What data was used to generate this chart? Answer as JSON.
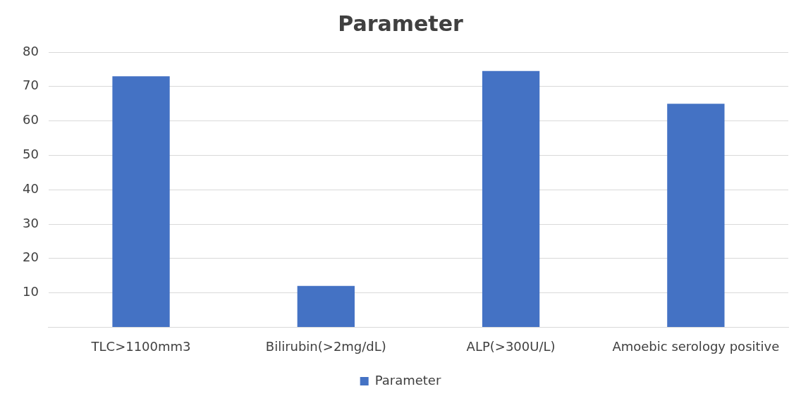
{
  "chart_data": {
    "type": "bar",
    "title": "Parameter",
    "categories": [
      "TLC>1100mm3",
      "Bilirubin(>2mg/dL)",
      "ALP(>300U/L)",
      "Amoebic serology positive"
    ],
    "series": [
      {
        "name": "Parameter",
        "color": "#4472c4",
        "values": [
          73,
          12,
          74.5,
          65
        ]
      }
    ],
    "ylim": [
      0,
      80
    ],
    "yticks": [
      {
        "value": 0,
        "label": null
      },
      10,
      20,
      30,
      40,
      50,
      60,
      70,
      80
    ],
    "grid": "y",
    "legend": "bottom"
  }
}
